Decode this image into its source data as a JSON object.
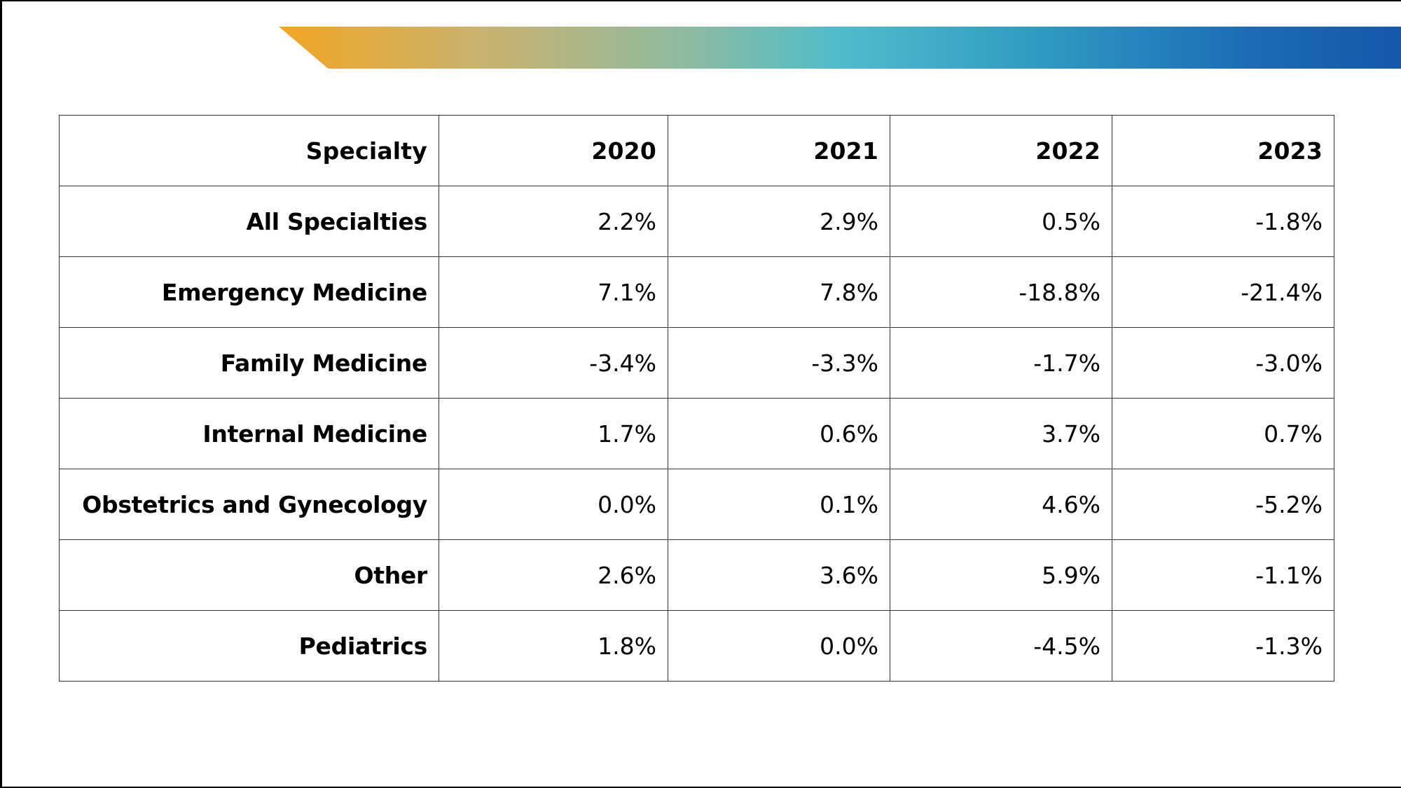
{
  "table": {
    "headers": [
      "Specialty",
      "2020",
      "2021",
      "2022",
      "2023"
    ],
    "rows": [
      {
        "specialty": "All Specialties",
        "values": [
          "2.2%",
          "2.9%",
          "0.5%",
          "-1.8%"
        ]
      },
      {
        "specialty": "Emergency Medicine",
        "values": [
          "7.1%",
          "7.8%",
          "-18.8%",
          "-21.4%"
        ]
      },
      {
        "specialty": "Family Medicine",
        "values": [
          "-3.4%",
          "-3.3%",
          "-1.7%",
          "-3.0%"
        ]
      },
      {
        "specialty": "Internal Medicine",
        "values": [
          "1.7%",
          "0.6%",
          "3.7%",
          "0.7%"
        ]
      },
      {
        "specialty": "Obstetrics and Gynecology",
        "values": [
          "0.0%",
          "0.1%",
          "4.6%",
          "-5.2%"
        ]
      },
      {
        "specialty": "Other",
        "values": [
          "2.6%",
          "3.6%",
          "5.9%",
          "-1.1%"
        ]
      },
      {
        "specialty": "Pediatrics",
        "values": [
          "1.8%",
          "0.0%",
          "-4.5%",
          "-1.3%"
        ]
      }
    ]
  },
  "colors": {
    "banner_start": "#f2a623",
    "banner_mid": "#4fbccb",
    "banner_end": "#1458ab",
    "border": "#333333"
  }
}
